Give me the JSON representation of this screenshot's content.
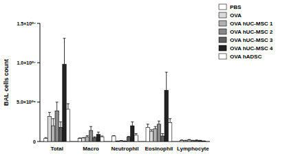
{
  "chart_data": {
    "type": "bar",
    "y_label": "BAL cells count",
    "categories": [
      "Total",
      "Macro",
      "Neutrophil",
      "Eosinophil",
      "Lymphocyte"
    ],
    "series": [
      {
        "name": "PBS",
        "color": "#ffffff",
        "values": [
          400000,
          400000,
          700000,
          1800000,
          150000
        ],
        "errors": [
          100000,
          50000,
          50000,
          400000,
          50000
        ]
      },
      {
        "name": "OVA",
        "color": "#d9d9d9",
        "values": [
          3200000,
          450000,
          50000,
          1300000,
          100000
        ],
        "errors": [
          500000,
          50000,
          20000,
          200000,
          50000
        ]
      },
      {
        "name": "OVA hUC-MSC 1",
        "color": "#b0b0b0",
        "values": [
          2000000,
          600000,
          100000,
          1600000,
          200000
        ],
        "errors": [
          900000,
          150000,
          30000,
          300000,
          50000
        ]
      },
      {
        "name": "OVA hUC-MSC 2",
        "color": "#888888",
        "values": [
          3900000,
          1400000,
          50000,
          2200000,
          100000
        ],
        "errors": [
          1100000,
          500000,
          20000,
          400000,
          50000
        ]
      },
      {
        "name": "OVA hUC-MSC 3",
        "color": "#5e5e5e",
        "values": [
          1800000,
          500000,
          550000,
          700000,
          150000
        ],
        "errors": [
          700000,
          100000,
          100000,
          300000,
          50000
        ]
      },
      {
        "name": "OVA hUC-MSC 4",
        "color": "#222222",
        "values": [
          9800000,
          900000,
          2000000,
          6500000,
          100000
        ],
        "errors": [
          3300000,
          300000,
          500000,
          2300000,
          50000
        ]
      },
      {
        "name": "OVA hADSC",
        "color": "#ffffff",
        "values": [
          4100000,
          600000,
          800000,
          2400000,
          50000
        ],
        "errors": [
          700000,
          100000,
          200000,
          500000,
          30000
        ]
      }
    ],
    "ylim": [
      0,
      15000000
    ],
    "yticks": [
      0,
      {
        "value": 5000000,
        "label": "5.0×10⁰⁶"
      },
      {
        "value": 10000000,
        "label": "1.0×10⁰⁷"
      },
      {
        "value": 15000000,
        "label": "1.5×10⁰⁷"
      }
    ],
    "grid": false,
    "legend": "top-right"
  }
}
